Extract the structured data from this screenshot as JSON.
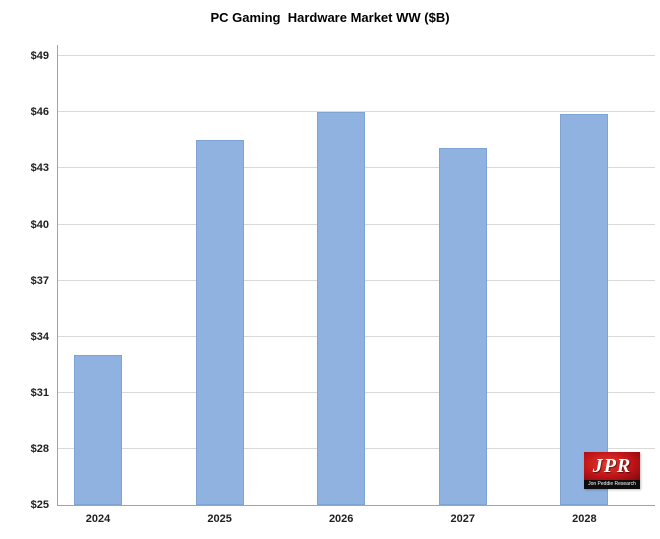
{
  "chart_data": {
    "type": "bar",
    "title": "PC Gaming  Hardware Market WW ($B)",
    "categories": [
      "2024",
      "2025",
      "2026",
      "2027",
      "2028"
    ],
    "values": [
      33.0,
      44.5,
      46.0,
      44.1,
      45.9
    ],
    "xlabel": "",
    "ylabel": "",
    "y_ticks": [
      "$25",
      "$28",
      "$31",
      "$34",
      "$37",
      "$40",
      "$43",
      "$46",
      "$49"
    ],
    "y_tick_values": [
      25,
      28,
      31,
      34,
      37,
      40,
      43,
      46,
      49
    ],
    "ylim": [
      25,
      49.6
    ],
    "grid": "horizontal",
    "legend_position": "none",
    "bar_color": "#8fb2e0",
    "bar_border_color": "#7ea4d6",
    "gridline_color": "#d9d9d9",
    "axis_color": "#a3a3a3",
    "text_color": "#1f1f1f"
  },
  "logo": {
    "acronym": "JPR",
    "name": "Jon Peddie Research",
    "bg_color": "#c01418"
  }
}
